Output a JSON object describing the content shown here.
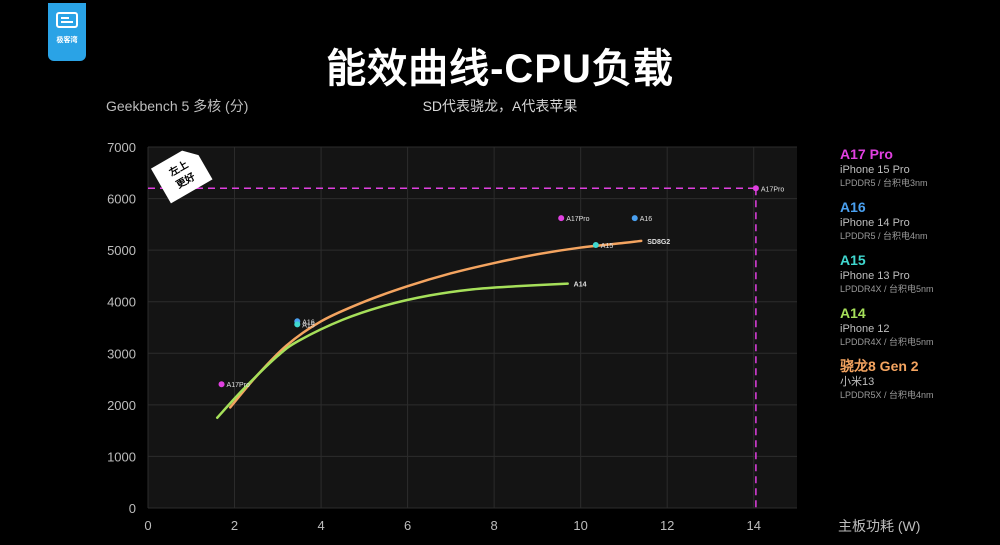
{
  "logo": {
    "text": "极客湾"
  },
  "header": {
    "title": "能效曲线-CPU负载",
    "subtitle": "SD代表骁龙，A代表苹果"
  },
  "chart_data": {
    "type": "line",
    "title": "能效曲线-CPU负载",
    "subtitle": "SD代表骁龙，A代表苹果",
    "xlabel": "主板功耗 (W)",
    "ylabel": "Geekbench 5 多核 (分)",
    "xlim": [
      0,
      15
    ],
    "ylim": [
      0,
      7000
    ],
    "xticks": [
      0,
      2,
      4,
      6,
      8,
      10,
      12,
      14
    ],
    "yticks": [
      0,
      1000,
      2000,
      3000,
      4000,
      5000,
      6000,
      7000
    ],
    "grid": true,
    "corner_badge": [
      "左上",
      "更好"
    ],
    "series": [
      {
        "name": "SD8G2",
        "color": "#f4a460",
        "x": [
          1.9,
          2.5,
          3.2,
          4.0,
          5.0,
          6.0,
          7.0,
          8.0,
          9.0,
          10.0,
          11.0,
          11.4
        ],
        "y": [
          1950,
          2550,
          3150,
          3620,
          4000,
          4300,
          4550,
          4750,
          4920,
          5050,
          5140,
          5180
        ],
        "end_label": "SD8G2"
      },
      {
        "name": "A14",
        "color": "#a6e05a",
        "x": [
          1.6,
          2.2,
          3.0,
          3.5,
          4.5,
          5.5,
          6.5,
          7.5,
          8.5,
          9.7
        ],
        "y": [
          1750,
          2300,
          2950,
          3250,
          3650,
          3930,
          4120,
          4240,
          4300,
          4350
        ],
        "end_label": "A14"
      }
    ],
    "points": [
      {
        "label": "A17Pro",
        "x": 1.7,
        "y": 2400,
        "color": "#e040e0"
      },
      {
        "label": "A16",
        "x": 3.45,
        "y": 3620,
        "color": "#4aa0f0"
      },
      {
        "label": "A15",
        "x": 3.45,
        "y": 3560,
        "color": "#40d8d0"
      },
      {
        "label": "A17Pro",
        "x": 9.55,
        "y": 5620,
        "color": "#e040e0"
      },
      {
        "label": "A16",
        "x": 11.25,
        "y": 5620,
        "color": "#4aa0f0"
      },
      {
        "label": "A15",
        "x": 10.35,
        "y": 5100,
        "color": "#40d8d0"
      },
      {
        "label": "A17Pro",
        "x": 14.05,
        "y": 6200,
        "color": "#e040e0"
      }
    ],
    "reference": {
      "x": 14.05,
      "y": 6200,
      "color": "#e040e0"
    }
  },
  "legend": [
    {
      "chip": "A17 Pro",
      "device": "iPhone 15 Pro",
      "spec": "LPDDR5 / 台积电3nm",
      "color": "#e040e0"
    },
    {
      "chip": "A16",
      "device": "iPhone 14 Pro",
      "spec": "LPDDR5 / 台积电4nm",
      "color": "#4aa0f0"
    },
    {
      "chip": "A15",
      "device": "iPhone 13 Pro",
      "spec": "LPDDR4X / 台积电5nm",
      "color": "#40d8d0"
    },
    {
      "chip": "A14",
      "device": "iPhone 12",
      "spec": "LPDDR4X / 台积电5nm",
      "color": "#a6e05a"
    },
    {
      "chip": "骁龙8 Gen 2",
      "device": "小米13",
      "spec": "LPDDR5X / 台积电4nm",
      "color": "#f4a460"
    }
  ]
}
